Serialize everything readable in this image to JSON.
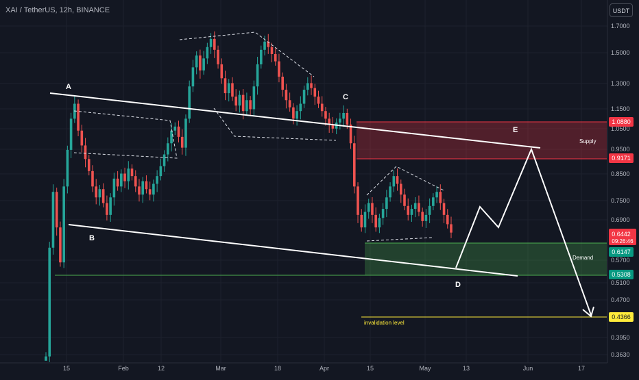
{
  "header": {
    "title": "XAI / TetherUS, 12h, BINANCE",
    "unit": "USDT"
  },
  "colors": {
    "background": "#131722",
    "up": "#26a69a",
    "down": "#ef5350",
    "supply_zone": "#f23645",
    "demand_zone": "#4caf50",
    "invalidation": "#ffeb3b"
  },
  "chart_data": {
    "type": "candlestick",
    "symbol": "XAI / TetherUS",
    "interval": "12h",
    "exchange": "BINANCE",
    "y_scale": "log",
    "y_ticks": [
      "1.7000",
      "1.5000",
      "1.3000",
      "1.1500",
      "1.0500",
      "0.9500",
      "0.8500",
      "0.7500",
      "0.6900",
      "0.5700",
      "0.5100",
      "0.4700",
      "0.3950",
      "0.3630"
    ],
    "x_ticks": [
      "15",
      "Feb",
      "12",
      "Mar",
      "18",
      "Apr",
      "15",
      "May",
      "13",
      "Jun",
      "17"
    ],
    "current_price": "0.6442",
    "countdown": "09:26:46",
    "price_labels": [
      {
        "key": "supply_top",
        "value": "1.0880",
        "color": "#f23645"
      },
      {
        "key": "supply_bottom",
        "value": "0.9171",
        "color": "#f23645"
      },
      {
        "key": "demand_top",
        "value": "0.6147",
        "color": "#089981"
      },
      {
        "key": "demand_bottom",
        "value": "0.5308",
        "color": "#089981"
      },
      {
        "key": "invalidation",
        "value": "0.4366",
        "color": "#ffeb3b"
      }
    ],
    "zones": [
      {
        "name": "Supply",
        "top": 1.088,
        "bottom": 0.9171
      },
      {
        "name": "Demand",
        "top": 0.6147,
        "bottom": 0.5308
      }
    ],
    "points": [
      "A",
      "B",
      "C",
      "D",
      "E"
    ],
    "annotations": {
      "invalidation": "invalidation level"
    },
    "candles_close": [
      0.36,
      0.6,
      0.78,
      0.66,
      0.56,
      0.8,
      0.95,
      1.1,
      1.18,
      1.04,
      0.97,
      0.91,
      0.86,
      0.8,
      0.76,
      0.79,
      0.74,
      0.7,
      0.76,
      0.83,
      0.8,
      0.85,
      0.82,
      0.87,
      0.84,
      0.8,
      0.77,
      0.82,
      0.79,
      0.77,
      0.81,
      0.84,
      0.88,
      0.93,
      0.98,
      1.04,
      1.06,
      1.01,
      0.96,
      1.1,
      1.28,
      1.4,
      1.48,
      1.38,
      1.46,
      1.54,
      1.6,
      1.52,
      1.42,
      1.33,
      1.24,
      1.3,
      1.22,
      1.17,
      1.23,
      1.14,
      1.2,
      1.15,
      1.28,
      1.42,
      1.52,
      1.58,
      1.54,
      1.49,
      1.44,
      1.34,
      1.26,
      1.2,
      1.16,
      1.1,
      1.14,
      1.18,
      1.26,
      1.3,
      1.27,
      1.22,
      1.18,
      1.14,
      1.1,
      1.07,
      1.05,
      1.08,
      1.1,
      1.13,
      1.07,
      0.98,
      0.8,
      0.7,
      0.66,
      0.71,
      0.74,
      0.7,
      0.66,
      0.69,
      0.72,
      0.76,
      0.8,
      0.84,
      0.81,
      0.77,
      0.73,
      0.7,
      0.72,
      0.74,
      0.71,
      0.68,
      0.7,
      0.73,
      0.76,
      0.78,
      0.74,
      0.7,
      0.67,
      0.6442
    ]
  }
}
